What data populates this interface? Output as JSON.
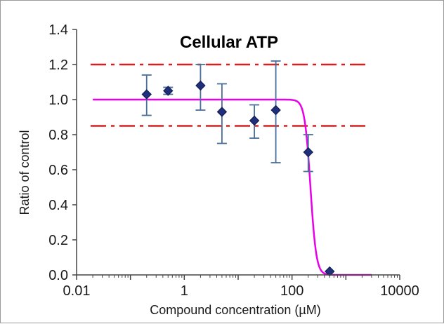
{
  "chart_data": {
    "type": "scatter",
    "title": "Cellular ATP",
    "xlabel": "Compound concentration (µM)",
    "ylabel": "Ratio of control",
    "x_scale": "log",
    "xlim": [
      0.01,
      10000
    ],
    "ylim": [
      0,
      1.4
    ],
    "x_ticks": [
      0.01,
      1,
      100,
      10000
    ],
    "x_tick_labels": [
      "0.01",
      "1",
      "100",
      "10000"
    ],
    "y_ticks": [
      0,
      0.2,
      0.4,
      0.6,
      0.8,
      1.0,
      1.2,
      1.4
    ],
    "y_tick_labels": [
      "0.0",
      "0.2",
      "0.4",
      "0.6",
      "0.8",
      "1.0",
      "1.2",
      "1.4"
    ],
    "grid": false,
    "legend": "none",
    "points": [
      {
        "x": 0.2,
        "y": 1.03,
        "err_low": 0.91,
        "err_high": 1.14
      },
      {
        "x": 0.5,
        "y": 1.05,
        "err_low": 1.03,
        "err_high": 1.07
      },
      {
        "x": 2,
        "y": 1.08,
        "err_low": 0.94,
        "err_high": 1.2
      },
      {
        "x": 5,
        "y": 0.93,
        "err_low": 0.75,
        "err_high": 1.09
      },
      {
        "x": 20,
        "y": 0.88,
        "err_low": 0.78,
        "err_high": 0.97
      },
      {
        "x": 50,
        "y": 0.94,
        "err_low": 0.64,
        "err_high": 1.22
      },
      {
        "x": 200,
        "y": 0.7,
        "err_low": 0.59,
        "err_high": 0.8
      },
      {
        "x": 500,
        "y": 0.02
      }
    ],
    "fit_curve": {
      "top": 1.0,
      "bottom": 0.0,
      "ic50": 220,
      "hill": 8,
      "x_range": [
        0.02,
        3000
      ]
    },
    "threshold_lines": [
      1.2,
      0.85
    ],
    "colors": {
      "points": "#1f2f7a",
      "error_bars": "#4a6f9a",
      "fit_curve": "#e800e8",
      "threshold": "#d62020",
      "axes": "#444444"
    }
  }
}
